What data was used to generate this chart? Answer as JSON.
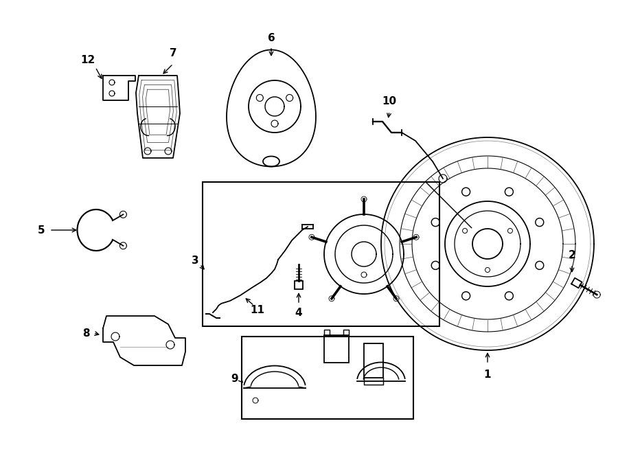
{
  "background_color": "#ffffff",
  "line_color": "#000000",
  "lw": 1.3
}
